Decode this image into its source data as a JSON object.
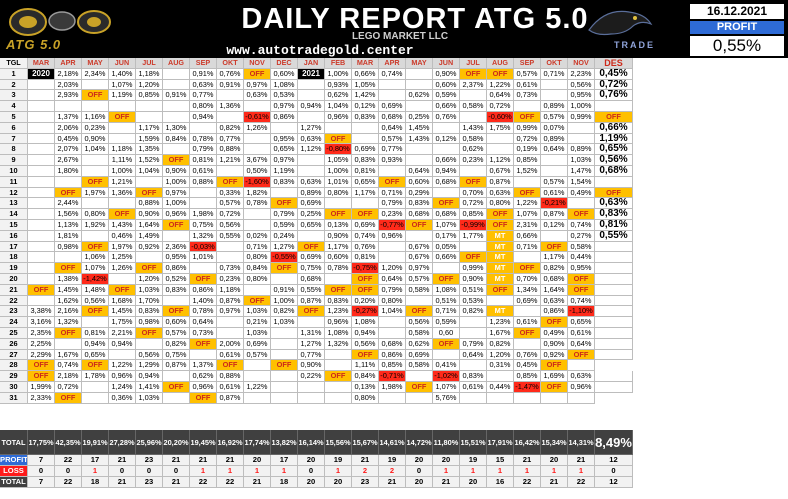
{
  "header": {
    "title": "DAILY REPORT ATG 5.0",
    "subtitle": "LEGO MARKET LLC",
    "website": "www.autotradegold.center",
    "logo_text": "ATG 5.0",
    "panther_text": "TRADE",
    "date": "16.12.2021",
    "profit_label": "PROFIT",
    "profit_value": "0,55%"
  },
  "columns": {
    "tgl": "TGL",
    "months": [
      "MAR",
      "APR",
      "MAY",
      "JUN",
      "JUL",
      "AUG",
      "SEP",
      "OKT",
      "NOV",
      "DEC",
      "JAN",
      "FEB",
      "MAR",
      "APR",
      "MAY",
      "JUN",
      "JUL",
      "AUG",
      "SEP",
      "OKT",
      "NOV"
    ],
    "des": "DES"
  },
  "rows": [
    [
      "1",
      "2020",
      "2,18%",
      "2,34%",
      "1,40%",
      "1,18%",
      "",
      "0,91%",
      "0,76%",
      "OFF",
      "0,60%",
      "2021",
      "1,00%",
      "0,66%",
      "0,74%",
      "",
      "0,90%",
      "OFF",
      "OFF",
      "0,57%",
      "0,71%",
      "2,23%",
      "0,45%"
    ],
    [
      "2",
      "",
      "2,03%",
      "",
      "1,07%",
      "1,20%",
      "",
      "0,63%",
      "0,91%",
      "0,97%",
      "1,08%",
      "",
      "0,93%",
      "1,05%",
      "",
      "",
      "0,60%",
      "2,37%",
      "1,22%",
      "0,61%",
      "",
      "0,56%",
      "0,72%"
    ],
    [
      "3",
      "",
      "2,93%",
      "OFF",
      "1,19%",
      "0,85%",
      "0,91%",
      "0,77%",
      "",
      "0,63%",
      "0,53%",
      "",
      "0,62%",
      "1,42%",
      "",
      "0,62%",
      "0,59%",
      "",
      "0,64%",
      "0,73%",
      "",
      "0,95%",
      "0,76%"
    ],
    [
      "4",
      "",
      "",
      "",
      "",
      "",
      "",
      "0,80%",
      "1,36%",
      "",
      "0,97%",
      "0,94%",
      "1,04%",
      "0,12%",
      "0,69%",
      "",
      "0,66%",
      "0,58%",
      "0,72%",
      "",
      "0,89%",
      "1,00%",
      ""
    ],
    [
      "5",
      "",
      "1,37%",
      "1,16%",
      "OFF",
      "",
      "",
      "0,94%",
      "",
      "-0,61%",
      "0,86%",
      "",
      "0,96%",
      "0,83%",
      "0,68%",
      "0,25%",
      "0,76%",
      "",
      "-0,60%",
      "OFF",
      "0,57%",
      "0,99%",
      "OFF"
    ],
    [
      "6",
      "",
      "2,06%",
      "0,23%",
      "",
      "1,17%",
      "1,30%",
      "",
      "0,82%",
      "1,26%",
      "",
      "1,27%",
      "",
      "",
      "0,64%",
      "1,45%",
      "",
      "1,43%",
      "1,75%",
      "0,99%",
      "0,07%",
      "",
      "0,66%"
    ],
    [
      "7",
      "",
      "0,45%",
      "0,90%",
      "",
      "1,59%",
      "0,84%",
      "0,78%",
      "0,77%",
      "",
      "0,95%",
      "0,63%",
      "OFF",
      "",
      "0,57%",
      "1,43%",
      "0,12%",
      "0,58%",
      "",
      "0,72%",
      "0,89%",
      "",
      "1,19%"
    ],
    [
      "8",
      "",
      "2,07%",
      "1,04%",
      "1,18%",
      "1,35%",
      "",
      "0,79%",
      "0,88%",
      "",
      "0,65%",
      "1,12%",
      "-0,80%",
      "0,69%",
      "0,77%",
      "",
      "",
      "0,62%",
      "",
      "0,19%",
      "0,64%",
      "0,89%",
      "0,65%"
    ],
    [
      "9",
      "",
      "2,67%",
      "",
      "1,11%",
      "1,52%",
      "OFF",
      "0,81%",
      "1,21%",
      "3,67%",
      "0,97%",
      "",
      "1,05%",
      "0,83%",
      "0,93%",
      "",
      "0,66%",
      "0,23%",
      "1,12%",
      "0,85%",
      "",
      "1,03%",
      "0,56%"
    ],
    [
      "10",
      "",
      "1,80%",
      "",
      "1,00%",
      "1,04%",
      "0,90%",
      "0,61%",
      "",
      "0,50%",
      "1,19%",
      "",
      "1,00%",
      "0,81%",
      "",
      "0,64%",
      "0,94%",
      "",
      "0,67%",
      "1,52%",
      "",
      "1,47%",
      "0,68%"
    ],
    [
      "11",
      "",
      "",
      "OFF",
      "1,21%",
      "",
      "1,00%",
      "0,88%",
      "OFF",
      "-1,60%",
      "0,83%",
      "0,63%",
      "1,01%",
      "0,65%",
      "OFF",
      "0,60%",
      "0,68%",
      "OFF",
      "0,87%",
      "",
      "0,57%",
      "1,54%",
      ""
    ],
    [
      "12",
      "",
      "OFF",
      "1,97%",
      "1,36%",
      "OFF",
      "0,97%",
      "",
      "0,33%",
      "1,82%",
      "",
      "0,89%",
      "0,80%",
      "1,17%",
      "0,71%",
      "0,29%",
      "",
      "0,70%",
      "0,63%",
      "OFF",
      "0,61%",
      "0,49%",
      "OFF"
    ],
    [
      "13",
      "",
      "2,44%",
      "",
      "",
      "0,88%",
      "1,00%",
      "",
      "0,57%",
      "0,78%",
      "OFF",
      "0,69%",
      "",
      "",
      "0,79%",
      "0,83%",
      "OFF",
      "0,72%",
      "0,80%",
      "1,22%",
      "-0,21%",
      "",
      "0,63%"
    ],
    [
      "14",
      "",
      "1,56%",
      "0,80%",
      "OFF",
      "0,90%",
      "0,96%",
      "1,98%",
      "0,72%",
      "",
      "0,79%",
      "0,25%",
      "OFF",
      "OFF",
      "0,23%",
      "0,68%",
      "0,68%",
      "0,85%",
      "OFF",
      "1,07%",
      "0,87%",
      "OFF",
      "0,83%"
    ],
    [
      "15",
      "",
      "1,13%",
      "1,92%",
      "1,43%",
      "1,64%",
      "OFF",
      "0,75%",
      "0,56%",
      "",
      "0,59%",
      "0,65%",
      "0,13%",
      "0,69%",
      "-0,77%",
      "OFF",
      "1,07%",
      "-0,99%",
      "OFF",
      "2,31%",
      "0,12%",
      "0,74%",
      "0,81%"
    ],
    [
      "16",
      "",
      "1,81%",
      "",
      "0,46%",
      "1,49%",
      "",
      "1,32%",
      "0,55%",
      "0,02%",
      "0,24%",
      "",
      "0,90%",
      "0,74%",
      "0,96%",
      "",
      "0,17%",
      "1,77%",
      "MT",
      "0,66%",
      "",
      "0,27%",
      "0,55%"
    ],
    [
      "17",
      "",
      "0,98%",
      "OFF",
      "1,97%",
      "0,92%",
      "2,36%",
      "-0,03%",
      "",
      "0,71%",
      "1,27%",
      "OFF",
      "1,17%",
      "0,76%",
      "",
      "0,67%",
      "0,05%",
      "",
      "MT",
      "0,71%",
      "OFF",
      "0,58%",
      ""
    ],
    [
      "18",
      "",
      "",
      "1,06%",
      "1,25%",
      "",
      "0,95%",
      "1,01%",
      "",
      "0,80%",
      "-0,55%",
      "0,69%",
      "0,60%",
      "0,81%",
      "",
      "0,67%",
      "0,66%",
      "OFF",
      "MT",
      "",
      "1,17%",
      "0,44%",
      ""
    ],
    [
      "19",
      "",
      "OFF",
      "1,07%",
      "1,26%",
      "OFF",
      "0,86%",
      "",
      "0,73%",
      "0,84%",
      "OFF",
      "0,75%",
      "0,78%",
      "-0,75%",
      "1,20%",
      "0,97%",
      "",
      "0,99%",
      "MT",
      "OFF",
      "0,82%",
      "0,95%",
      ""
    ],
    [
      "20",
      "",
      "1,38%",
      "-1,42%",
      "",
      "1,20%",
      "0,52%",
      "OFF",
      "0,23%",
      "0,80%",
      "",
      "0,68%",
      "",
      "OFF",
      "0,64%",
      "0,57%",
      "OFF",
      "0,90%",
      "MT",
      "0,70%",
      "0,68%",
      "OFF",
      ""
    ],
    [
      "21",
      "OFF",
      "1,45%",
      "1,48%",
      "OFF",
      "1,03%",
      "0,83%",
      "0,86%",
      "1,18%",
      "",
      "0,91%",
      "0,55%",
      "OFF",
      "OFF",
      "0,79%",
      "0,58%",
      "1,08%",
      "0,51%",
      "OFF",
      "1,34%",
      "1,64%",
      "OFF",
      ""
    ],
    [
      "22",
      "",
      "1,62%",
      "0,56%",
      "1,68%",
      "1,70%",
      "",
      "1,40%",
      "0,87%",
      "OFF",
      "1,00%",
      "0,87%",
      "0,83%",
      "0,20%",
      "0,80%",
      "",
      "0,51%",
      "0,53%",
      "",
      "0,69%",
      "0,63%",
      "0,74%",
      ""
    ],
    [
      "23",
      "3,38%",
      "2,16%",
      "OFF",
      "1,45%",
      "0,83%",
      "OFF",
      "0,78%",
      "0,97%",
      "1,03%",
      "0,82%",
      "OFF",
      "1,23%",
      "-0,27%",
      "1,04%",
      "OFF",
      "0,71%",
      "0,82%",
      "MT",
      "",
      "0,86%",
      "-1,10%",
      ""
    ],
    [
      "24",
      "3,16%",
      "1,32%",
      "",
      "1,75%",
      "0,98%",
      "0,60%",
      "0,64%",
      "",
      "0,21%",
      "1,03%",
      "",
      "0,96%",
      "1,08%",
      "",
      "0,56%",
      "0,59%",
      "",
      "1,23%",
      "0,61%",
      "OFF",
      "0,65%",
      ""
    ],
    [
      "25",
      "2,35%",
      "OFF",
      "0,81%",
      "2,21%",
      "OFF",
      "0,57%",
      "0,73%",
      "",
      "1,03%",
      "",
      "1,31%",
      "1,08%",
      "0,94%",
      "",
      "0,58%",
      "0,60",
      "",
      "1,67%",
      "OFF",
      "0,49%",
      "0,61%",
      ""
    ],
    [
      "26",
      "2,25%",
      "",
      "0,94%",
      "0,94%",
      "",
      "0,82%",
      "OFF",
      "2,00%",
      "0,69%",
      "",
      "1,27%",
      "1,32%",
      "0,56%",
      "0,68%",
      "0,62%",
      "OFF",
      "0,79%",
      "0,82%",
      "",
      "0,90%",
      "0,64%",
      ""
    ],
    [
      "27",
      "2,29%",
      "1,67%",
      "0,65%",
      "",
      "0,56%",
      "0,75%",
      "",
      "0,61%",
      "0,57%",
      "",
      "0,77%",
      "",
      "OFF",
      "0,86%",
      "0,69%",
      "",
      "0,64%",
      "1,20%",
      "0,76%",
      "0,92%",
      "OFF",
      ""
    ],
    [
      "28",
      "OFF",
      "0,74%",
      "OFF",
      "1,22%",
      "1,29%",
      "0,87%",
      "1,37%",
      "OFF",
      "",
      "OFF",
      "0,90%",
      "",
      "1,11%",
      "0,85%",
      "0,58%",
      "0,41%",
      "",
      "0,31%",
      "0,45%",
      "OFF",
      ""
    ],
    [
      "29",
      "OFF",
      "2,18%",
      "1,78%",
      "0,96%",
      "0,94%",
      "",
      "0,62%",
      "0,88%",
      "",
      "",
      "0,22%",
      "OFF",
      "0,84%",
      "-0,71%",
      "",
      "-1,02%",
      "0,83%",
      "",
      "0,85%",
      "1,69%",
      "0,63%",
      ""
    ],
    [
      "30",
      "1,99%",
      "0,72%",
      "",
      "1,24%",
      "1,41%",
      "OFF",
      "0,96%",
      "0,61%",
      "1,22%",
      "",
      "",
      "",
      "0,13%",
      "1,98%",
      "OFF",
      "1,07%",
      "0,61%",
      "0,44%",
      "-1,47%",
      "OFF",
      "0,96%",
      ""
    ],
    [
      "31",
      "2,33%",
      "OFF",
      "",
      "0,36%",
      "1,03%",
      "",
      "OFF",
      "0,87%",
      "",
      "",
      "",
      "",
      "0,80%",
      "",
      "",
      "5,76%",
      "",
      "",
      "",
      "",
      ""
    ]
  ],
  "summary": {
    "total": [
      "TOTAL",
      "17,75%",
      "42,35%",
      "19,91%",
      "27,28%",
      "25,96%",
      "20,20%",
      "19,45%",
      "16,92%",
      "17,74%",
      "13,82%",
      "16,14%",
      "15,56%",
      "15,67%",
      "14,61%",
      "14,72%",
      "11,80%",
      "15,51%",
      "17,91%",
      "16,42%",
      "15,34%",
      "14,31%",
      "8,49%"
    ],
    "profit": [
      "PROFIT",
      "7",
      "22",
      "17",
      "21",
      "23",
      "21",
      "21",
      "21",
      "20",
      "17",
      "20",
      "19",
      "21",
      "19",
      "20",
      "20",
      "19",
      "15",
      "21",
      "20",
      "21",
      "12"
    ],
    "loss": [
      "LOSS",
      "0",
      "0",
      "1",
      "0",
      "0",
      "0",
      "1",
      "1",
      "1",
      "1",
      "0",
      "1",
      "2",
      "2",
      "0",
      "1",
      "1",
      "1",
      "1",
      "1",
      "1",
      "0"
    ],
    "total_count": [
      "TOTAL",
      "7",
      "22",
      "18",
      "21",
      "23",
      "21",
      "22",
      "22",
      "21",
      "18",
      "20",
      "20",
      "23",
      "21",
      "20",
      "21",
      "20",
      "16",
      "22",
      "21",
      "22",
      "12"
    ]
  }
}
